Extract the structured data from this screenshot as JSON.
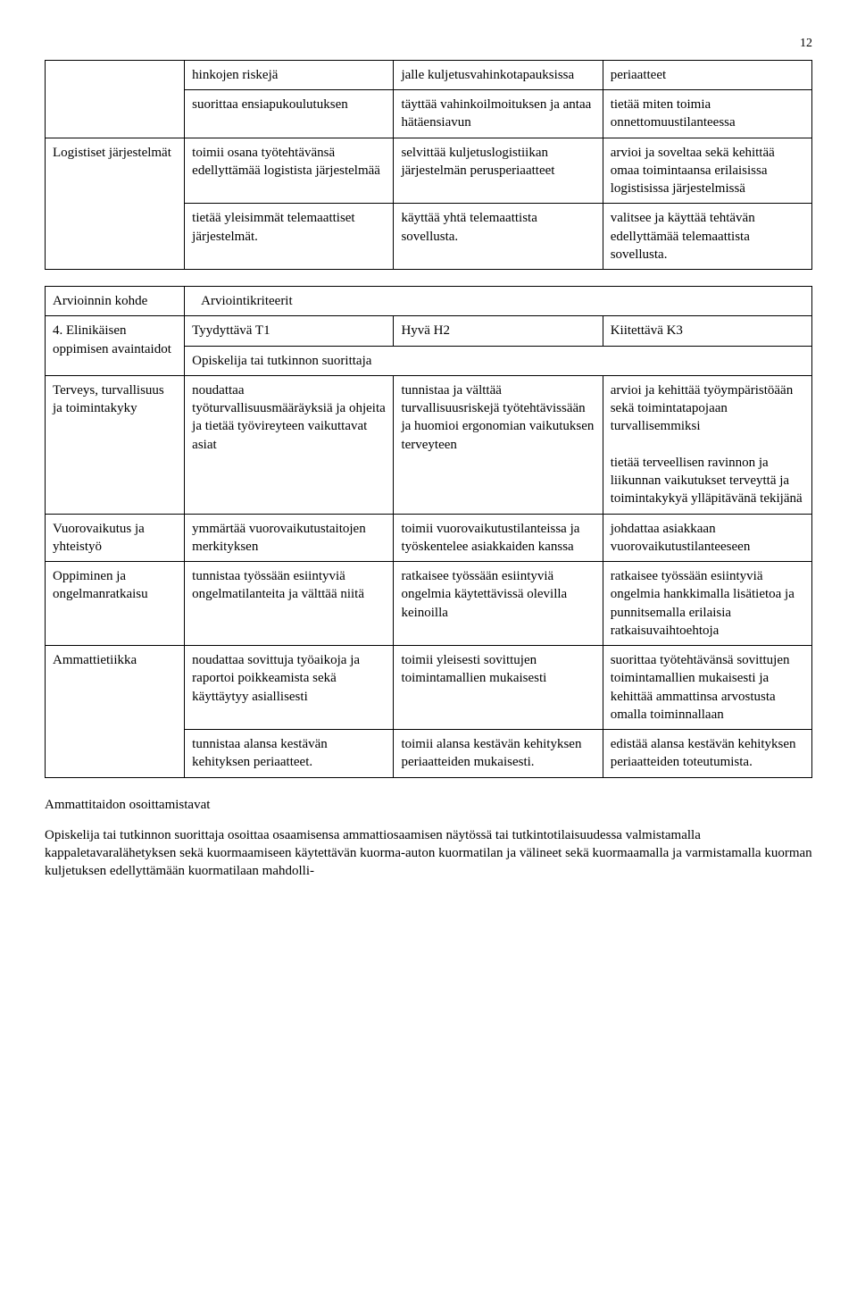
{
  "page_number": "12",
  "table1": {
    "rows": [
      {
        "label": "",
        "c1": "hinkojen riskejä",
        "c2": "jalle kuljetusvahinkotapauksissa",
        "c3": "periaatteet"
      },
      {
        "label": "",
        "c1": "suorittaa ensiapukoulutuksen",
        "c2": "täyttää vahinkoilmoituksen ja antaa hätäensiavun",
        "c3": "tietää miten toimia onnettomuustilanteessa"
      },
      {
        "label": "Logistiset järjestelmät",
        "c1": "toimii osana työtehtävänsä edellyttämää logistista järjestelmää",
        "c2": "selvittää kuljetuslogistiikan järjestelmän perusperiaatteet",
        "c3": "arvioi ja soveltaa sekä kehittää omaa toimintaansa erilaisissa logistisissa järjestelmissä"
      },
      {
        "label": "",
        "c1": "tietää yleisimmät telemaattiset järjestelmät.",
        "c2": "käyttää yhtä telemaattista sovellusta.",
        "c3": "valitsee ja käyttää tehtävän edellyttämää telemaattista sovellusta."
      }
    ]
  },
  "table2": {
    "h_label": "Arvioinnin kohde",
    "h_crit": "Arviointikriteerit",
    "row_levels": {
      "label": "4. Elinikäisen oppimisen avaintaidot",
      "c1": "Tyydyttävä T1",
      "c2": "Hyvä H2",
      "c3": "Kiitettävä K3"
    },
    "row_subhead": "Opiskelija tai tutkinnon suorittaja",
    "rows": [
      {
        "label": "Terveys, turvallisuus ja toimintakyky",
        "c1": "noudattaa työturvallisuusmääräyksiä ja ohjeita ja tietää työvireyteen vaikuttavat asiat",
        "c2": "tunnistaa ja välttää turvallisuusriskejä työtehtävissään ja huomioi ergonomian vaikutuksen terveyteen",
        "c3": "arvioi ja kehittää työympäristöään sekä toimintatapojaan turvallisemmiksi\n\ntietää terveellisen ravinnon ja liikunnan vaikutukset terveyttä ja toimintakykyä ylläpitävänä tekijänä"
      },
      {
        "label": "Vuorovaikutus ja yhteistyö",
        "c1": "ymmärtää vuorovaikutustaitojen merkityksen",
        "c2": "toimii vuorovaikutustilanteissa ja työskentelee asiakkaiden kanssa",
        "c3": "johdattaa asiakkaan vuorovaikutustilanteeseen"
      },
      {
        "label": "Oppiminen ja ongelmanratkaisu",
        "c1": "tunnistaa työssään esiintyviä ongelmatilanteita ja välttää niitä",
        "c2": "ratkaisee työssään esiintyviä ongelmia käytettävissä olevilla keinoilla",
        "c3": "ratkaisee työssään esiintyviä ongelmia hankkimalla lisätietoa ja punnitsemalla erilaisia ratkaisuvaihtoehtoja"
      },
      {
        "label": "Ammattietiikka",
        "c1": "noudattaa sovittuja työaikoja ja raportoi poikkeamista sekä käyttäytyy asiallisesti",
        "c2": "toimii yleisesti sovittujen toimintamallien mukaisesti",
        "c3": "suorittaa työtehtävänsä sovittujen toimintamallien mukaisesti ja kehittää ammattinsa arvostusta omalla toiminnallaan"
      },
      {
        "label": "",
        "c1": "tunnistaa alansa kestävän kehityksen periaatteet.",
        "c2": "toimii alansa kestävän kehityksen periaatteiden mukaisesti.",
        "c3": "edistää alansa kestävän kehityksen periaatteiden toteutumista."
      }
    ]
  },
  "footer_heading": "Ammattitaidon osoittamistavat",
  "footer_text": "Opiskelija tai tutkinnon suorittaja osoittaa osaamisensa ammattiosaamisen näytössä tai tutkintotilaisuudessa valmistamalla kappaletavaralähetyksen sekä kuormaamiseen käytettävän kuorma-auton kuormatilan ja välineet sekä kuormaamalla ja varmistamalla kuorman kuljetuksen edellyttämään kuormatilaan mahdolli-"
}
